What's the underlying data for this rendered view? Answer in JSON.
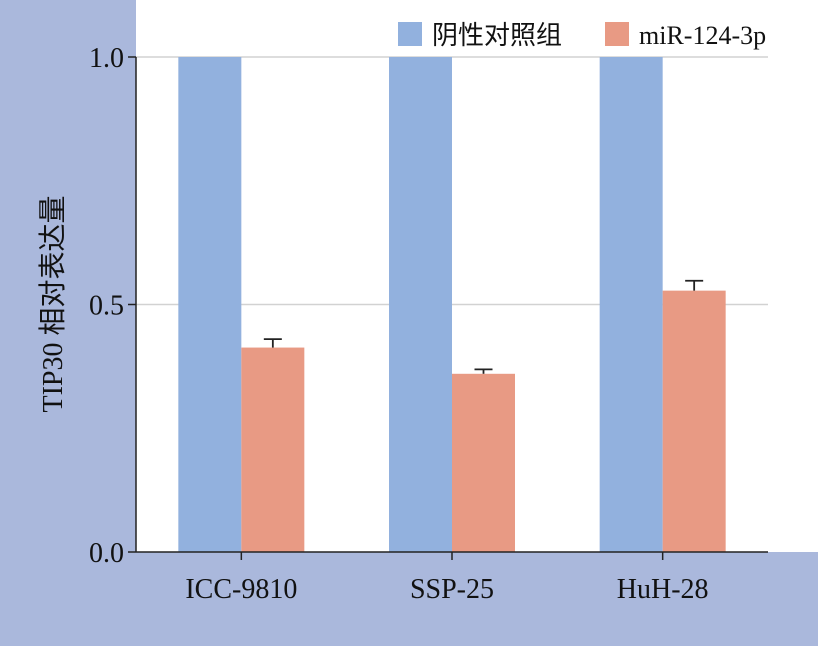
{
  "chart_data": {
    "type": "bar",
    "title": "",
    "xlabel": "",
    "ylabel": "TIP30 相对表达量",
    "categories": [
      "ICC-9810",
      "SSP-25",
      "HuH-28"
    ],
    "series": [
      {
        "name": "阴性对照组",
        "color": "#92b1de",
        "values": [
          1.0,
          1.0,
          1.0
        ],
        "errors": [
          0,
          0,
          0
        ]
      },
      {
        "name": "miR-124-3p",
        "color": "#e89a84",
        "values": [
          0.413,
          0.36,
          0.528
        ],
        "errors": [
          0.017,
          0.009,
          0.02
        ]
      }
    ],
    "ylim": [
      0,
      1.0
    ],
    "yticks": [
      0.0,
      0.5,
      1.0
    ],
    "ytick_labels": [
      "0.0",
      "0.5",
      "1.0"
    ],
    "grid": true,
    "legend": "top-right",
    "plot_background": "#ffffff",
    "figure_background": "#aab8dc"
  }
}
